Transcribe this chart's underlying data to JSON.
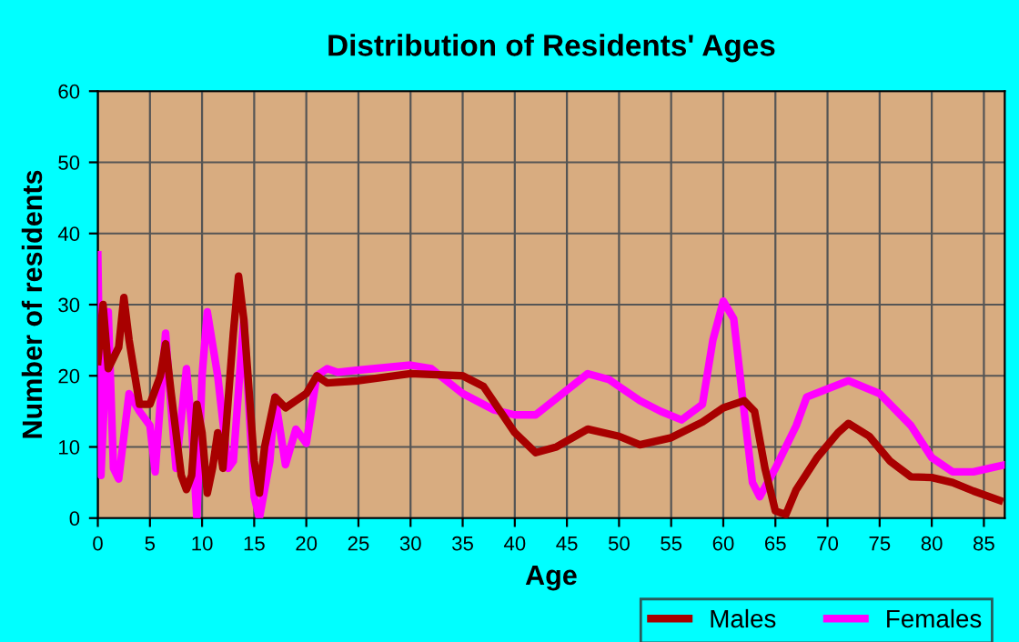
{
  "chart_data": {
    "type": "line",
    "title": "Distribution of Residents' Ages",
    "xlabel": "Age",
    "ylabel": "Number of residents",
    "xlim": [
      0,
      87
    ],
    "xticks": [
      0,
      5,
      10,
      15,
      20,
      25,
      30,
      35,
      40,
      45,
      50,
      55,
      60,
      65,
      70,
      75,
      80,
      85
    ],
    "ylim": [
      0,
      60
    ],
    "yticks": [
      0,
      10,
      20,
      30,
      40,
      50,
      60
    ],
    "grid": true,
    "legend": "bottom right",
    "line_style": "solid",
    "marker": "none",
    "series": [
      {
        "name": "Males",
        "color": "#a80000",
        "x": [
          0,
          0.5,
          1,
          2,
          2.5,
          3,
          4,
          5,
          6,
          6.5,
          7,
          8,
          8.5,
          9,
          9.5,
          10,
          10.5,
          11,
          11.5,
          12,
          13,
          13.5,
          14,
          15,
          15.5,
          16,
          17,
          18,
          19,
          20,
          21,
          22,
          25,
          30,
          35,
          37,
          40,
          42,
          44,
          47,
          50,
          52,
          55,
          58,
          60,
          62,
          63,
          64,
          65,
          66,
          67,
          69,
          71,
          72,
          74,
          76,
          78,
          80,
          82,
          84,
          86.5
        ],
        "values": [
          22,
          30,
          21,
          24,
          31,
          25,
          16,
          16,
          20,
          24.5,
          18,
          6,
          4,
          6,
          16,
          12,
          3.5,
          7,
          12,
          7,
          26,
          34,
          28,
          8,
          3.5,
          10,
          17,
          15.5,
          16.5,
          17.5,
          20,
          19,
          19.3,
          20.3,
          20,
          18.5,
          12,
          9.2,
          10,
          12.5,
          11.5,
          10.3,
          11.3,
          13.5,
          15.5,
          16.5,
          15,
          7,
          1,
          0.5,
          4,
          8.5,
          12,
          13.3,
          11.5,
          8,
          5.8,
          5.7,
          5,
          3.8,
          2.5
        ]
      },
      {
        "name": "Females",
        "color": "#ff00ff",
        "x": [
          0,
          0.3,
          1,
          1.5,
          2,
          3,
          4,
          5,
          5.5,
          6.5,
          7,
          7.5,
          8.5,
          9,
          9.5,
          10,
          10.5,
          11.5,
          12.5,
          13,
          14,
          15,
          15.5,
          16.5,
          17,
          18,
          19,
          20,
          21,
          22,
          23,
          25,
          30,
          32,
          35,
          38,
          40,
          42,
          45,
          47,
          49,
          52,
          54,
          56,
          58,
          59,
          60,
          61,
          62,
          62.8,
          63.5,
          65,
          67,
          68,
          72,
          75,
          78,
          80,
          82,
          84,
          87
        ],
        "values": [
          37,
          6,
          29,
          7,
          5.5,
          17.5,
          15,
          13,
          6.5,
          26,
          16,
          7,
          21,
          13,
          0,
          20,
          29,
          20,
          7,
          8,
          28,
          3,
          0,
          8,
          17,
          7.5,
          12.5,
          10.5,
          20,
          21,
          20.5,
          20.8,
          21.5,
          21,
          17.5,
          15.2,
          14.5,
          14.5,
          18,
          20.3,
          19.5,
          16.5,
          15,
          13.8,
          16,
          25,
          30.5,
          28,
          15,
          5,
          3,
          7,
          13,
          17,
          19.3,
          17.5,
          13,
          8.5,
          6.5,
          6.5,
          7.5
        ]
      }
    ]
  }
}
